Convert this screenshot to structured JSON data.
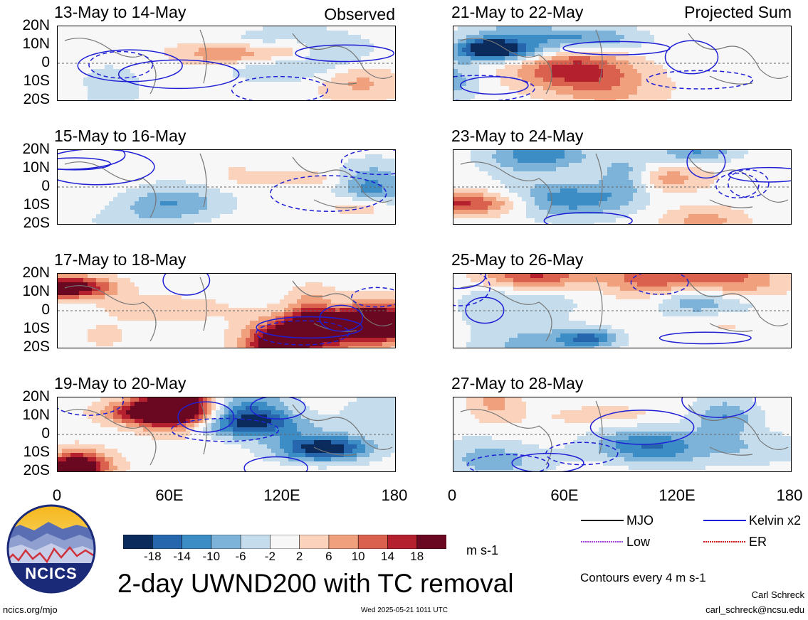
{
  "chart_data": {
    "type": "heatmap",
    "title": "2-day UWND200 with TC removal",
    "units": "m s-1",
    "contour_note": "Contours every 4 m s-1",
    "x_ticks": [
      "0",
      "60E",
      "120E",
      "180"
    ],
    "y_ticks": [
      "20N",
      "10N",
      "0",
      "10S",
      "20S"
    ],
    "xlim": [
      0,
      180
    ],
    "ylim": [
      -20,
      20
    ],
    "colorbar_labels": [
      "-18",
      "-14",
      "-10",
      "-6",
      "-2",
      "2",
      "6",
      "10",
      "14",
      "18"
    ],
    "colorbar_colors": [
      "#0b2b5c",
      "#2566ad",
      "#3c8cc6",
      "#7db3d9",
      "#c4dcec",
      "#f7f7f7",
      "#fbd2bc",
      "#f0a07c",
      "#d9614e",
      "#b5202e",
      "#6b0821"
    ],
    "panels": [
      {
        "title": "13-May to 14-May",
        "tag": "Observed",
        "seed": 1
      },
      {
        "title": "21-May to 22-May",
        "tag": "Projected Sum",
        "seed": 2
      },
      {
        "title": "15-May to 16-May",
        "tag": "",
        "seed": 3
      },
      {
        "title": "23-May to 24-May",
        "tag": "",
        "seed": 4
      },
      {
        "title": "17-May to 18-May",
        "tag": "",
        "seed": 5
      },
      {
        "title": "25-May to 26-May",
        "tag": "",
        "seed": 6
      },
      {
        "title": "19-May to 20-May",
        "tag": "",
        "seed": 7
      },
      {
        "title": "27-May to 28-May",
        "tag": "",
        "seed": 8
      }
    ],
    "legend": [
      {
        "label": "MJO",
        "color": "#000000"
      },
      {
        "label": "Kelvin x2",
        "color": "#1f1fd6"
      },
      {
        "label": "Low",
        "color": "#a040d0"
      },
      {
        "label": "ER",
        "color": "#d01818"
      }
    ]
  },
  "footer": {
    "logo_text": "NCICS",
    "url": "ncics.org/mjo",
    "timestamp": "Wed 2025-05-21 1011 UTC",
    "author": "Carl Schreck",
    "email": "carl_schreck@ncsu.edu"
  }
}
